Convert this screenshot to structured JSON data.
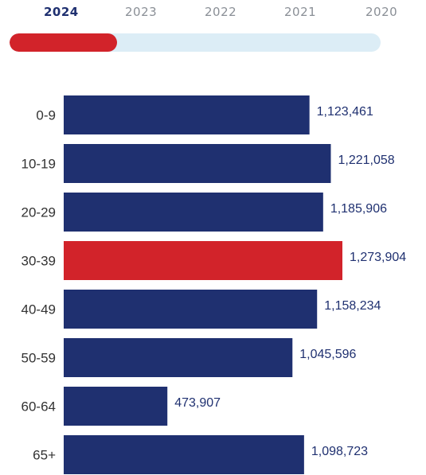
{
  "year_tabs": {
    "items": [
      "2024",
      "2023",
      "2022",
      "2021",
      "2020"
    ],
    "selected": "2024",
    "progress_fraction": 0.29
  },
  "colors": {
    "bar": "#1f3070",
    "highlight": "#d2232a",
    "track": "#dcedf6",
    "tab_active": "#1f3070",
    "tab_inactive": "#8a8f96"
  },
  "chart_data": {
    "type": "bar",
    "orientation": "horizontal",
    "categories": [
      "0-9",
      "10-19",
      "20-29",
      "30-39",
      "40-49",
      "50-59",
      "60-64",
      "65+"
    ],
    "values": [
      1123461,
      1221058,
      1185906,
      1273904,
      1158234,
      1045596,
      473907,
      1098723
    ],
    "value_labels": [
      "1,123,461",
      "1,221,058",
      "1,185,906",
      "1,273,904",
      "1,158,234",
      "1,045,596",
      "473,907",
      "1,098,723"
    ],
    "highlight_category": "30-39",
    "xlim": [
      0,
      1273904
    ],
    "grid": false,
    "legend": "none"
  }
}
